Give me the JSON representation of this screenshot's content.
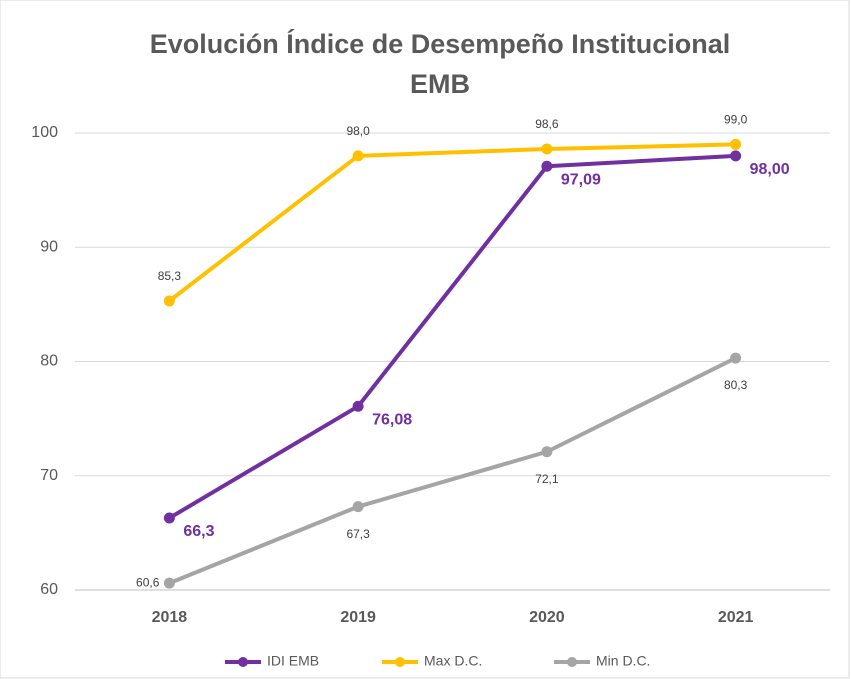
{
  "chart_data": {
    "type": "line",
    "title": [
      "Evolución Índice de Desempeño Institucional",
      "EMB"
    ],
    "categories": [
      "2018",
      "2019",
      "2020",
      "2021"
    ],
    "series": [
      {
        "name": "IDI EMB",
        "color": "#7030a0",
        "values": [
          66.3,
          76.08,
          97.09,
          98.0
        ],
        "value_labels": [
          "66,3",
          "76,08",
          "97,09",
          "98,00"
        ]
      },
      {
        "name": "Max D.C.",
        "color": "#ffc000",
        "values": [
          85.3,
          98.0,
          98.6,
          99.0
        ],
        "value_labels": [
          "85,3",
          "98,0",
          "98,6",
          "99,0"
        ]
      },
      {
        "name": "Min D.C.",
        "color": "#a5a5a5",
        "values": [
          60.6,
          67.3,
          72.1,
          80.3
        ],
        "value_labels": [
          "60,6",
          "67,3",
          "72,1",
          "80,3"
        ]
      }
    ],
    "ylim": [
      60,
      100
    ],
    "yticks": [
      60,
      70,
      80,
      90,
      100
    ],
    "grid": true,
    "legend": "bottom"
  }
}
